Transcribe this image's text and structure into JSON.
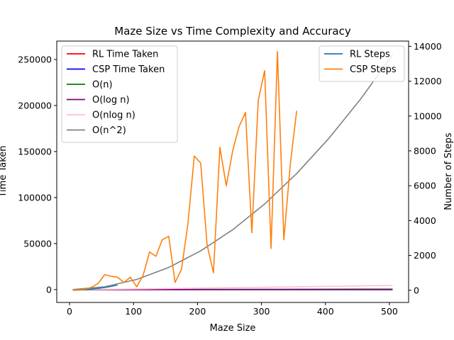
{
  "chart_data": {
    "type": "line",
    "title": "Maze Size vs Time Complexity and Accuracy",
    "xlabel": "Maze Size",
    "ylabel_left": "Time Taken",
    "ylabel_right": "Number of Steps",
    "xlim": [
      -20,
      530
    ],
    "ylim_left": [
      -14000,
      270000
    ],
    "ylim_right": [
      -700,
      14300
    ],
    "x_ticks": [
      0,
      100,
      200,
      300,
      400,
      500
    ],
    "y_left_ticks": [
      0,
      50000,
      100000,
      150000,
      200000,
      250000
    ],
    "y_right_ticks": [
      0,
      2000,
      4000,
      6000,
      8000,
      10000,
      12000,
      14000
    ],
    "legend_left": {
      "placement": "upper-left",
      "entries": [
        "RL Time Taken",
        "CSP Time Taken",
        "O(n)",
        "O(log n)",
        "O(nlog n)",
        "O(n^2)"
      ]
    },
    "legend_right": {
      "placement": "upper-right",
      "entries": [
        "RL Steps",
        "CSP Steps"
      ]
    },
    "colors": {
      "RL Time Taken": "#ff0000",
      "CSP Time Taken": "#0000ff",
      "O(n)": "#008000",
      "O(log n)": "#800080",
      "O(nlog n)": "#ffc0cb",
      "O(n^2)": "#808080",
      "RL Steps": "#1f77b4",
      "CSP Steps": "#ff7f0e"
    },
    "series_left": [
      {
        "name": "RL Time Taken",
        "x": [
          5,
          505
        ],
        "y": [
          0,
          0
        ]
      },
      {
        "name": "CSP Time Taken",
        "x": [
          5,
          505
        ],
        "y": [
          0,
          0
        ]
      },
      {
        "name": "O(n)",
        "x": [
          5,
          105,
          205,
          305,
          405,
          505
        ],
        "y": [
          5,
          105,
          205,
          305,
          405,
          505
        ]
      },
      {
        "name": "O(log n)",
        "x": [
          5,
          55,
          105,
          155,
          205,
          255,
          305,
          355,
          405,
          455,
          505
        ],
        "y": [
          2.3,
          5.8,
          6.7,
          7.3,
          7.7,
          8.0,
          8.3,
          8.5,
          8.6,
          8.8,
          8.9
        ]
      },
      {
        "name": "O(nlog n)",
        "x": [
          5,
          55,
          105,
          155,
          205,
          255,
          305,
          355,
          405,
          455,
          505
        ],
        "y": [
          12,
          320,
          700,
          1100,
          1600,
          2050,
          2520,
          3000,
          3500,
          4000,
          4500
        ]
      },
      {
        "name": "O(n^2)",
        "x": [
          5,
          55,
          105,
          155,
          205,
          255,
          305,
          355,
          405,
          455,
          505
        ],
        "y": [
          25,
          3025,
          11025,
          24025,
          42025,
          65025,
          93025,
          126025,
          164025,
          207025,
          255025
        ]
      }
    ],
    "series_right": [
      {
        "name": "RL Steps",
        "x": [
          5,
          15,
          25,
          35,
          45,
          55,
          65,
          75
        ],
        "y": [
          5,
          15,
          35,
          70,
          110,
          160,
          220,
          300
        ]
      },
      {
        "name": "CSP Steps",
        "x": [
          5,
          15,
          25,
          35,
          45,
          55,
          65,
          75,
          85,
          95,
          105,
          115,
          125,
          135,
          145,
          155,
          165,
          175,
          185,
          195,
          205,
          215,
          225,
          235,
          245,
          255,
          265,
          275,
          285,
          295,
          305,
          315,
          325,
          335,
          345,
          355
        ],
        "y": [
          10,
          20,
          60,
          180,
          400,
          900,
          800,
          750,
          450,
          750,
          200,
          850,
          2200,
          1950,
          2900,
          3100,
          450,
          1200,
          3800,
          7700,
          7300,
          2600,
          1000,
          8200,
          6000,
          8000,
          9400,
          10200,
          3300,
          10900,
          12600,
          2400,
          13700,
          2900,
          7200,
          10300
        ]
      }
    ]
  }
}
